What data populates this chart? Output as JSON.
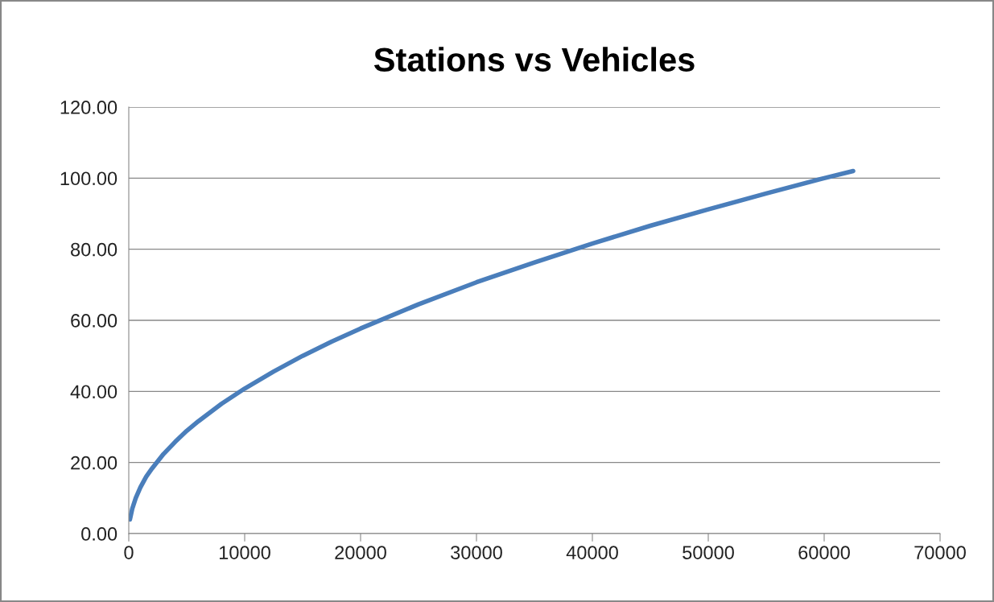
{
  "chart_data": {
    "type": "line",
    "title": "Stations vs Vehicles",
    "x": [
      100,
      300,
      600,
      1000,
      1500,
      2000,
      3000,
      4000,
      5000,
      6000,
      8000,
      10000,
      12500,
      15000,
      17500,
      20000,
      25000,
      30000,
      35000,
      40000,
      45000,
      50000,
      55000,
      60000,
      62500
    ],
    "series": [
      {
        "color": "#4a7ebb",
        "values": [
          4,
          7,
          10,
          13,
          16,
          18.3,
          22.4,
          25.8,
          28.9,
          31.6,
          36.5,
          40.8,
          45.6,
          50,
          54,
          57.7,
          64.5,
          70.7,
          76.3,
          81.6,
          86.6,
          91.2,
          95.7,
          100,
          102
        ]
      }
    ],
    "xlim": [
      0,
      70000
    ],
    "xticks": [
      0,
      10000,
      20000,
      30000,
      40000,
      50000,
      60000,
      70000
    ],
    "ylim": [
      0,
      120
    ],
    "yticks": [
      {
        "value": 0,
        "label": "0.00"
      },
      {
        "value": 20,
        "label": "20.00"
      },
      {
        "value": 40,
        "label": "40.00"
      },
      {
        "value": 60,
        "label": "60.00"
      },
      {
        "value": 80,
        "label": "80.00"
      },
      {
        "value": 100,
        "label": "100.00"
      },
      {
        "value": 120,
        "label": "120.00"
      }
    ],
    "grid": "y",
    "legend": false,
    "marker": "none",
    "line_style": "solid"
  }
}
